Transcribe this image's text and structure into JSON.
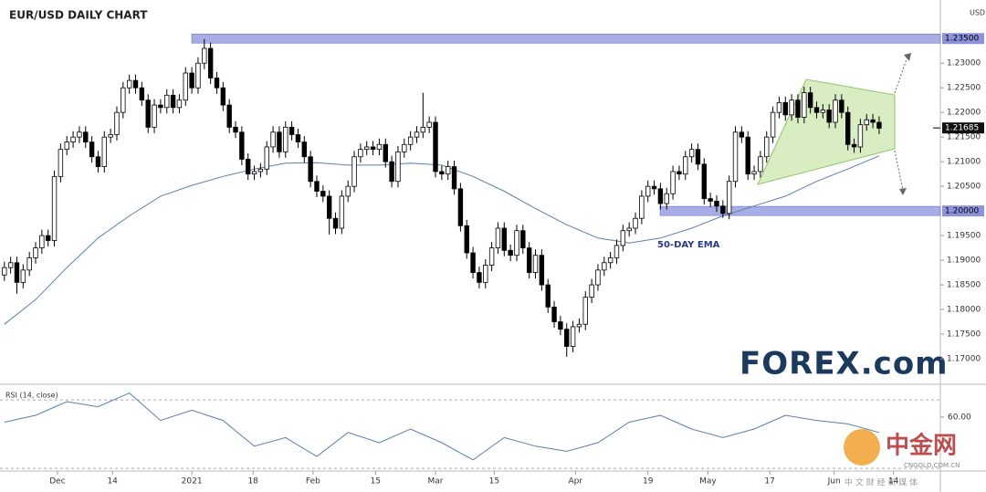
{
  "chart_data": [
    {
      "type": "candlestick",
      "title": "EUR/USD DAILY CHART",
      "y_axis_label": "USD",
      "up_color": "#ffffff",
      "down_color": "#000000",
      "xlim": [
        -0.7,
        149.8
      ],
      "ylim": [
        1.165,
        1.2419
      ],
      "yticks": [
        {
          "value": 1.23,
          "label": "1.23000"
        },
        {
          "value": 1.225,
          "label": "1.22500"
        },
        {
          "value": 1.22,
          "label": "1.22000"
        },
        {
          "value": 1.215,
          "label": "1.21500"
        },
        {
          "value": 1.21,
          "label": "1.21000"
        },
        {
          "value": 1.205,
          "label": "1.20500"
        },
        {
          "value": 1.195,
          "label": "1.19500"
        },
        {
          "value": 1.19,
          "label": "1.19000"
        },
        {
          "value": 1.185,
          "label": "1.18500"
        },
        {
          "value": 1.18,
          "label": "1.18000"
        },
        {
          "value": 1.175,
          "label": "1.17500"
        },
        {
          "value": 1.17,
          "label": "1.17000"
        }
      ],
      "levels": [
        {
          "value": 1.235,
          "label": "1.23500"
        },
        {
          "value": 1.2,
          "label": "1.20000"
        }
      ],
      "level_color": "#8c92dc",
      "last_price": {
        "value": 1.21685,
        "label": "1.21685"
      },
      "candles": [
        [
          1.187,
          1.1897,
          1.1858,
          1.1885
        ],
        [
          1.1885,
          1.1907,
          1.1873,
          1.1895
        ],
        [
          1.1895,
          1.1907,
          1.1832,
          1.1855
        ],
        [
          1.1855,
          1.1892,
          1.1843,
          1.188
        ],
        [
          1.188,
          1.1917,
          1.1868,
          1.1905
        ],
        [
          1.1905,
          1.1937,
          1.1893,
          1.1925
        ],
        [
          1.1925,
          1.1962,
          1.1913,
          1.195
        ],
        [
          1.195,
          1.1962,
          1.1928,
          1.194
        ],
        [
          1.194,
          1.2082,
          1.1928,
          1.207
        ],
        [
          1.207,
          1.2137,
          1.2058,
          1.2125
        ],
        [
          1.2125,
          1.2152,
          1.2113,
          1.214
        ],
        [
          1.214,
          1.2162,
          1.2128,
          1.215
        ],
        [
          1.215,
          1.2172,
          1.2138,
          1.216
        ],
        [
          1.216,
          1.2172,
          1.2128,
          1.214
        ],
        [
          1.214,
          1.2152,
          1.2098,
          1.211
        ],
        [
          1.211,
          1.2122,
          1.2078,
          1.209
        ],
        [
          1.209,
          1.2162,
          1.2078,
          1.215
        ],
        [
          1.215,
          1.2167,
          1.2138,
          1.2155
        ],
        [
          1.2155,
          1.2212,
          1.2143,
          1.22
        ],
        [
          1.22,
          1.2262,
          1.2188,
          1.225
        ],
        [
          1.225,
          1.2277,
          1.2238,
          1.2265
        ],
        [
          1.2265,
          1.2277,
          1.2238,
          1.225
        ],
        [
          1.225,
          1.2262,
          1.2213,
          1.2225
        ],
        [
          1.2225,
          1.2237,
          1.2158,
          1.217
        ],
        [
          1.217,
          1.2227,
          1.2158,
          1.2215
        ],
        [
          1.2215,
          1.2227,
          1.2198,
          1.221
        ],
        [
          1.221,
          1.2247,
          1.2198,
          1.2235
        ],
        [
          1.2235,
          1.2247,
          1.2198,
          1.221
        ],
        [
          1.221,
          1.2237,
          1.2198,
          1.2225
        ],
        [
          1.2225,
          1.2292,
          1.2213,
          1.228
        ],
        [
          1.228,
          1.2292,
          1.2238,
          1.225
        ],
        [
          1.225,
          1.2312,
          1.2238,
          1.23
        ],
        [
          1.23,
          1.2349,
          1.2288,
          1.233
        ],
        [
          1.233,
          1.2342,
          1.2258,
          1.227
        ],
        [
          1.227,
          1.2282,
          1.2238,
          1.225
        ],
        [
          1.225,
          1.2262,
          1.2203,
          1.2215
        ],
        [
          1.2215,
          1.2227,
          1.2158,
          1.217
        ],
        [
          1.217,
          1.2182,
          1.2148,
          1.216
        ],
        [
          1.216,
          1.2172,
          1.2093,
          1.2105
        ],
        [
          1.2105,
          1.2117,
          1.2063,
          1.2075
        ],
        [
          1.2075,
          1.2092,
          1.2063,
          1.208
        ],
        [
          1.208,
          1.2097,
          1.2068,
          1.2085
        ],
        [
          1.2085,
          1.2142,
          1.2073,
          1.213
        ],
        [
          1.213,
          1.2172,
          1.2118,
          1.216
        ],
        [
          1.216,
          1.2172,
          1.2108,
          1.212
        ],
        [
          1.212,
          1.2182,
          1.2108,
          1.217
        ],
        [
          1.217,
          1.2182,
          1.2143,
          1.2155
        ],
        [
          1.2155,
          1.2167,
          1.2128,
          1.214
        ],
        [
          1.214,
          1.2152,
          1.2098,
          1.211
        ],
        [
          1.211,
          1.2122,
          1.2048,
          1.206
        ],
        [
          1.206,
          1.2072,
          1.2028,
          1.204
        ],
        [
          1.204,
          1.2052,
          1.2018,
          1.203
        ],
        [
          1.203,
          1.2042,
          1.1952,
          1.1985
        ],
        [
          1.1985,
          1.1997,
          1.1953,
          1.1965
        ],
        [
          1.1965,
          1.2042,
          1.1953,
          1.203
        ],
        [
          1.203,
          1.2062,
          1.2018,
          1.205
        ],
        [
          1.205,
          1.2122,
          1.2038,
          1.211
        ],
        [
          1.211,
          1.2137,
          1.2098,
          1.2125
        ],
        [
          1.2125,
          1.2142,
          1.2113,
          1.213
        ],
        [
          1.213,
          1.2142,
          1.2113,
          1.2125
        ],
        [
          1.2125,
          1.2147,
          1.2113,
          1.2135
        ],
        [
          1.2135,
          1.2147,
          1.2088,
          1.21
        ],
        [
          1.21,
          1.2112,
          1.2048,
          1.206
        ],
        [
          1.206,
          1.2132,
          1.2048,
          1.212
        ],
        [
          1.212,
          1.2147,
          1.2108,
          1.2135
        ],
        [
          1.2135,
          1.2162,
          1.2123,
          1.215
        ],
        [
          1.215,
          1.2172,
          1.2138,
          1.216
        ],
        [
          1.216,
          1.224,
          1.2148,
          1.217
        ],
        [
          1.217,
          1.2192,
          1.2158,
          1.218
        ],
        [
          1.218,
          1.2192,
          1.2068,
          1.208
        ],
        [
          1.208,
          1.2092,
          1.2063,
          1.2075
        ],
        [
          1.2075,
          1.2102,
          1.2063,
          1.209
        ],
        [
          1.209,
          1.2102,
          1.2033,
          1.2045
        ],
        [
          1.2045,
          1.2057,
          1.1958,
          1.197
        ],
        [
          1.197,
          1.1982,
          1.1903,
          1.1915
        ],
        [
          1.1915,
          1.1927,
          1.1863,
          1.1875
        ],
        [
          1.1875,
          1.1887,
          1.1843,
          1.1855
        ],
        [
          1.1855,
          1.1902,
          1.1843,
          1.189
        ],
        [
          1.189,
          1.1937,
          1.1878,
          1.1925
        ],
        [
          1.1925,
          1.1977,
          1.1913,
          1.1965
        ],
        [
          1.1965,
          1.1977,
          1.1908,
          1.192
        ],
        [
          1.192,
          1.1932,
          1.1898,
          1.191
        ],
        [
          1.191,
          1.1972,
          1.1898,
          1.196
        ],
        [
          1.196,
          1.1972,
          1.1913,
          1.1925
        ],
        [
          1.1925,
          1.1937,
          1.1863,
          1.1875
        ],
        [
          1.1875,
          1.1922,
          1.1863,
          1.191
        ],
        [
          1.191,
          1.1922,
          1.1838,
          1.185
        ],
        [
          1.185,
          1.1862,
          1.1793,
          1.1805
        ],
        [
          1.1805,
          1.1817,
          1.1763,
          1.1775
        ],
        [
          1.1775,
          1.1787,
          1.1748,
          1.176
        ],
        [
          1.176,
          1.1772,
          1.1704,
          1.1725
        ],
        [
          1.1725,
          1.1777,
          1.1713,
          1.1765
        ],
        [
          1.1765,
          1.1782,
          1.1753,
          1.177
        ],
        [
          1.177,
          1.1837,
          1.1758,
          1.1825
        ],
        [
          1.1825,
          1.1862,
          1.1813,
          1.185
        ],
        [
          1.185,
          1.1892,
          1.1838,
          1.188
        ],
        [
          1.188,
          1.1907,
          1.1868,
          1.1895
        ],
        [
          1.1895,
          1.1917,
          1.1883,
          1.1905
        ],
        [
          1.1905,
          1.1942,
          1.1893,
          1.193
        ],
        [
          1.193,
          1.1972,
          1.1918,
          1.196
        ],
        [
          1.196,
          1.1977,
          1.1948,
          1.1965
        ],
        [
          1.1965,
          1.1997,
          1.1953,
          1.1985
        ],
        [
          1.1985,
          1.2042,
          1.1973,
          1.203
        ],
        [
          1.203,
          1.2062,
          1.2018,
          1.205
        ],
        [
          1.205,
          1.2062,
          1.2033,
          1.2045
        ],
        [
          1.2045,
          1.2057,
          1.2003,
          1.2015
        ],
        [
          1.2015,
          1.2047,
          1.2003,
          1.2035
        ],
        [
          1.2035,
          1.2092,
          1.2023,
          1.208
        ],
        [
          1.208,
          1.2092,
          1.2063,
          1.2075
        ],
        [
          1.2075,
          1.2122,
          1.2063,
          1.211
        ],
        [
          1.211,
          1.2137,
          1.2098,
          1.2125
        ],
        [
          1.2125,
          1.2137,
          1.2083,
          1.2095
        ],
        [
          1.2095,
          1.2107,
          1.2013,
          1.2025
        ],
        [
          1.2025,
          1.2037,
          1.2008,
          1.202
        ],
        [
          1.202,
          1.2032,
          1.1998,
          1.201
        ],
        [
          1.201,
          1.2022,
          1.1986,
          1.1995
        ],
        [
          1.1995,
          1.2072,
          1.1983,
          1.206
        ],
        [
          1.206,
          1.2172,
          1.2048,
          1.216
        ],
        [
          1.216,
          1.2172,
          1.2138,
          1.215
        ],
        [
          1.215,
          1.2162,
          1.2063,
          1.2075
        ],
        [
          1.2075,
          1.2092,
          1.2063,
          1.208
        ],
        [
          1.208,
          1.2122,
          1.2068,
          1.211
        ],
        [
          1.211,
          1.2162,
          1.2098,
          1.215
        ],
        [
          1.215,
          1.2212,
          1.2138,
          1.22
        ],
        [
          1.22,
          1.2232,
          1.2188,
          1.222
        ],
        [
          1.222,
          1.2232,
          1.2183,
          1.2195
        ],
        [
          1.2195,
          1.2237,
          1.2183,
          1.2225
        ],
        [
          1.2225,
          1.2237,
          1.2178,
          1.219
        ],
        [
          1.219,
          1.2252,
          1.2178,
          1.224
        ],
        [
          1.224,
          1.2252,
          1.2198,
          1.221
        ],
        [
          1.221,
          1.2222,
          1.2188,
          1.22
        ],
        [
          1.22,
          1.2217,
          1.2188,
          1.2205
        ],
        [
          1.2205,
          1.2217,
          1.2168,
          1.218
        ],
        [
          1.218,
          1.2237,
          1.2168,
          1.2225
        ],
        [
          1.2225,
          1.2237,
          1.2188,
          1.22
        ],
        [
          1.22,
          1.2212,
          1.2123,
          1.2135
        ],
        [
          1.2135,
          1.2147,
          1.2118,
          1.213
        ],
        [
          1.213,
          1.2187,
          1.2118,
          1.2175
        ],
        [
          1.2175,
          1.2197,
          1.2163,
          1.2185
        ],
        [
          1.2185,
          1.2197,
          1.2168,
          1.218
        ],
        [
          1.218,
          1.2192,
          1.2156,
          1.2168
        ]
      ],
      "series": [
        {
          "name": "50-DAY EMA",
          "color": "#5b7fa8",
          "x": [
            0,
            5,
            10,
            15,
            20,
            25,
            30,
            35,
            40,
            45,
            50,
            55,
            60,
            65,
            70,
            75,
            80,
            85,
            90,
            95,
            100,
            105,
            110,
            115,
            120,
            125,
            130,
            135,
            140
          ],
          "values": [
            1.177,
            1.182,
            1.1885,
            1.1945,
            1.199,
            1.203,
            1.2052,
            1.207,
            1.2085,
            1.2097,
            1.2098,
            1.2093,
            1.2093,
            1.2097,
            1.2093,
            1.207,
            1.204,
            1.2005,
            1.1972,
            1.1945,
            1.1935,
            1.1945,
            1.1965,
            1.199,
            1.201,
            1.203,
            1.206,
            1.2085,
            1.2112
          ]
        }
      ]
    },
    {
      "type": "line",
      "title": "RSI (14, close)",
      "color": "#5b7fa8",
      "xlim": [
        -0.7,
        149.8
      ],
      "ylim": [
        29,
        77
      ],
      "yticks": [
        {
          "value": 60,
          "label": "60.00"
        }
      ],
      "levels": [
        70,
        30
      ],
      "xticks": [
        {
          "value": 8.5,
          "label": "Dec"
        },
        {
          "value": 17.3,
          "label": "14"
        },
        {
          "value": 30,
          "label": "2021"
        },
        {
          "value": 39.8,
          "label": "18"
        },
        {
          "value": 49.4,
          "label": "Feb"
        },
        {
          "value": 59.4,
          "label": "15"
        },
        {
          "value": 69,
          "label": "Mar"
        },
        {
          "value": 78.4,
          "label": "15"
        },
        {
          "value": 91.4,
          "label": "Apr"
        },
        {
          "value": 103,
          "label": "19"
        },
        {
          "value": 112.6,
          "label": "May"
        },
        {
          "value": 122.5,
          "label": "17"
        },
        {
          "value": 132.8,
          "label": "Jun"
        },
        {
          "value": 142.3,
          "label": "14"
        }
      ],
      "x": [
        0,
        5,
        10,
        15,
        20,
        25,
        30,
        35,
        40,
        45,
        50,
        55,
        60,
        65,
        70,
        75,
        80,
        85,
        90,
        95,
        100,
        105,
        110,
        115,
        120,
        125,
        130,
        135,
        140
      ],
      "values": [
        57,
        61,
        69,
        66,
        74,
        58,
        64,
        58,
        43,
        48,
        37,
        51,
        45,
        53,
        45,
        35,
        48,
        43,
        40,
        45,
        57,
        61,
        53,
        48,
        53,
        61,
        58,
        56,
        51
      ]
    }
  ],
  "logo": "FOREX.com",
  "watermark": {
    "brand": "中金网",
    "site": "CNGOLD.COM.CN",
    "slogan": "中 文 财 经 新 媒 体"
  }
}
